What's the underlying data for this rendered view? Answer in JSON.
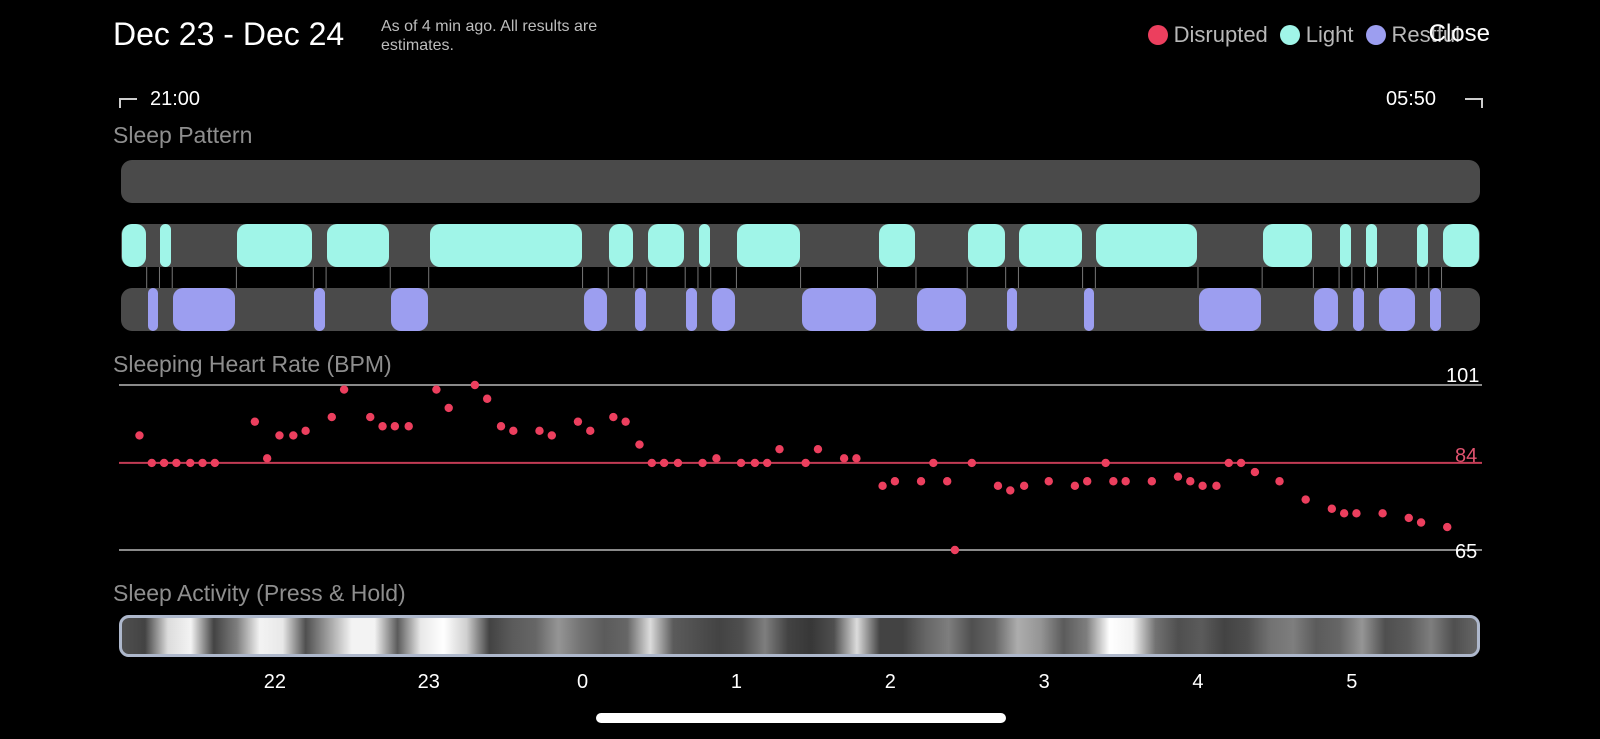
{
  "header": {
    "date_range": "Dec 23 - Dec 24",
    "note": "As of 4 min ago. All results are estimates.",
    "close_label": "Close"
  },
  "legend": [
    {
      "label": "Disrupted",
      "color": "#ec3f5e"
    },
    {
      "label": "Light",
      "color": "#a0f5e8"
    },
    {
      "label": "Restful",
      "color": "#9c9ef0"
    }
  ],
  "time_range": {
    "start": "21:00",
    "end": "05:50"
  },
  "sections": {
    "sleep_pattern": "Sleep Pattern",
    "heart_rate": "Sleeping Heart Rate (BPM)",
    "activity": "Sleep Activity (Press & Hold)"
  },
  "colors": {
    "disrupted": "#ec3f5e",
    "light": "#a0f5e8",
    "restful": "#9c9ef0",
    "track": "#4a4a4a",
    "avg_line": "#c23b54",
    "ref_line": "#8a8a8a"
  },
  "sleep_pattern": {
    "start_hour": 21,
    "end_hour": 29.833,
    "light": [
      [
        21.0,
        21.167
      ],
      [
        21.25,
        21.333
      ],
      [
        21.75,
        22.25
      ],
      [
        22.333,
        22.75
      ],
      [
        23.0,
        24.0
      ],
      [
        24.167,
        24.333
      ],
      [
        24.417,
        24.667
      ],
      [
        24.75,
        24.833
      ],
      [
        25.0,
        25.417
      ],
      [
        25.917,
        26.167
      ],
      [
        26.5,
        26.75
      ],
      [
        26.833,
        27.25
      ],
      [
        27.333,
        28.0
      ],
      [
        28.417,
        28.75
      ],
      [
        28.917,
        29.0
      ],
      [
        29.083,
        29.167
      ],
      [
        29.417,
        29.5
      ],
      [
        29.583,
        29.833
      ]
    ],
    "restful": [
      [
        21.167,
        21.25
      ],
      [
        21.333,
        21.75
      ],
      [
        22.25,
        22.333
      ],
      [
        22.75,
        23.0
      ],
      [
        24.0,
        24.167
      ],
      [
        24.333,
        24.417
      ],
      [
        24.667,
        24.75
      ],
      [
        24.833,
        25.0
      ],
      [
        25.417,
        25.917
      ],
      [
        26.167,
        26.5
      ],
      [
        26.75,
        26.833
      ],
      [
        27.25,
        27.333
      ],
      [
        28.0,
        28.417
      ],
      [
        28.75,
        28.917
      ],
      [
        29.0,
        29.083
      ],
      [
        29.167,
        29.417
      ],
      [
        29.5,
        29.583
      ]
    ]
  },
  "chart_data": {
    "type": "scatter",
    "title": "Sleeping Heart Rate (BPM)",
    "xlabel": "",
    "ylabel": "",
    "x_unit": "hours from midnight Dec 23 (values above 24 are Dec 24)",
    "xlim": [
      21.0,
      29.833
    ],
    "ylim": [
      65,
      101
    ],
    "reference_lines": [
      {
        "label": "101",
        "value": 101
      },
      {
        "label": "84",
        "value": 84
      },
      {
        "label": "65",
        "value": 65
      }
    ],
    "x_ticks": [
      "22",
      "23",
      "0",
      "1",
      "2",
      "3",
      "4",
      "5"
    ],
    "x_tick_values": [
      22,
      23,
      24,
      25,
      26,
      27,
      28,
      29
    ],
    "points": [
      [
        21.12,
        90
      ],
      [
        21.2,
        84
      ],
      [
        21.28,
        84
      ],
      [
        21.36,
        84
      ],
      [
        21.45,
        84
      ],
      [
        21.53,
        84
      ],
      [
        21.61,
        84
      ],
      [
        21.87,
        93
      ],
      [
        21.95,
        85
      ],
      [
        22.03,
        90
      ],
      [
        22.12,
        90
      ],
      [
        22.2,
        91
      ],
      [
        22.37,
        94
      ],
      [
        22.45,
        100
      ],
      [
        22.62,
        94
      ],
      [
        22.7,
        92
      ],
      [
        22.78,
        92
      ],
      [
        22.87,
        92
      ],
      [
        23.05,
        100
      ],
      [
        23.13,
        96
      ],
      [
        23.3,
        101
      ],
      [
        23.38,
        98
      ],
      [
        23.47,
        92
      ],
      [
        23.55,
        91
      ],
      [
        23.72,
        91
      ],
      [
        23.8,
        90
      ],
      [
        23.97,
        93
      ],
      [
        24.05,
        91
      ],
      [
        24.2,
        94
      ],
      [
        24.28,
        93
      ],
      [
        24.37,
        88
      ],
      [
        24.45,
        84
      ],
      [
        24.53,
        84
      ],
      [
        24.62,
        84
      ],
      [
        24.78,
        84
      ],
      [
        24.87,
        85
      ],
      [
        25.03,
        84
      ],
      [
        25.12,
        84
      ],
      [
        25.2,
        84
      ],
      [
        25.28,
        87
      ],
      [
        25.45,
        84
      ],
      [
        25.53,
        87
      ],
      [
        25.7,
        85
      ],
      [
        25.78,
        85
      ],
      [
        25.95,
        79
      ],
      [
        26.03,
        80
      ],
      [
        26.2,
        80
      ],
      [
        26.28,
        84
      ],
      [
        26.37,
        80
      ],
      [
        26.42,
        65
      ],
      [
        26.53,
        84
      ],
      [
        26.7,
        79
      ],
      [
        26.78,
        78
      ],
      [
        26.87,
        79
      ],
      [
        27.03,
        80
      ],
      [
        27.2,
        79
      ],
      [
        27.28,
        80
      ],
      [
        27.4,
        84
      ],
      [
        27.45,
        80
      ],
      [
        27.53,
        80
      ],
      [
        27.7,
        80
      ],
      [
        27.87,
        81
      ],
      [
        27.95,
        80
      ],
      [
        28.03,
        79
      ],
      [
        28.12,
        79
      ],
      [
        28.2,
        84
      ],
      [
        28.28,
        84
      ],
      [
        28.37,
        82
      ],
      [
        28.53,
        80
      ],
      [
        28.7,
        76
      ],
      [
        28.87,
        74
      ],
      [
        28.95,
        73
      ],
      [
        29.03,
        73
      ],
      [
        29.2,
        73
      ],
      [
        29.37,
        72
      ],
      [
        29.45,
        71
      ],
      [
        29.62,
        70
      ]
    ]
  },
  "activity": {
    "intensity": [
      0.25,
      0.2,
      0.85,
      0.95,
      0.2,
      0.45,
      0.95,
      0.9,
      0.25,
      0.6,
      0.95,
      0.95,
      0.3,
      0.9,
      1.0,
      0.8,
      0.2,
      0.3,
      0.35,
      0.55,
      0.4,
      0.3,
      0.35,
      0.85,
      0.3,
      0.25,
      0.2,
      0.25,
      0.45,
      0.2,
      0.15,
      0.25,
      0.85,
      0.2,
      0.2,
      0.35,
      0.45,
      0.25,
      0.35,
      0.65,
      0.55,
      0.3,
      0.45,
      1.0,
      0.95,
      0.4,
      0.25,
      0.3,
      0.2,
      0.25,
      0.4,
      0.45,
      0.3,
      0.35,
      0.55,
      0.25,
      0.3,
      0.45,
      0.25,
      0.35
    ]
  }
}
